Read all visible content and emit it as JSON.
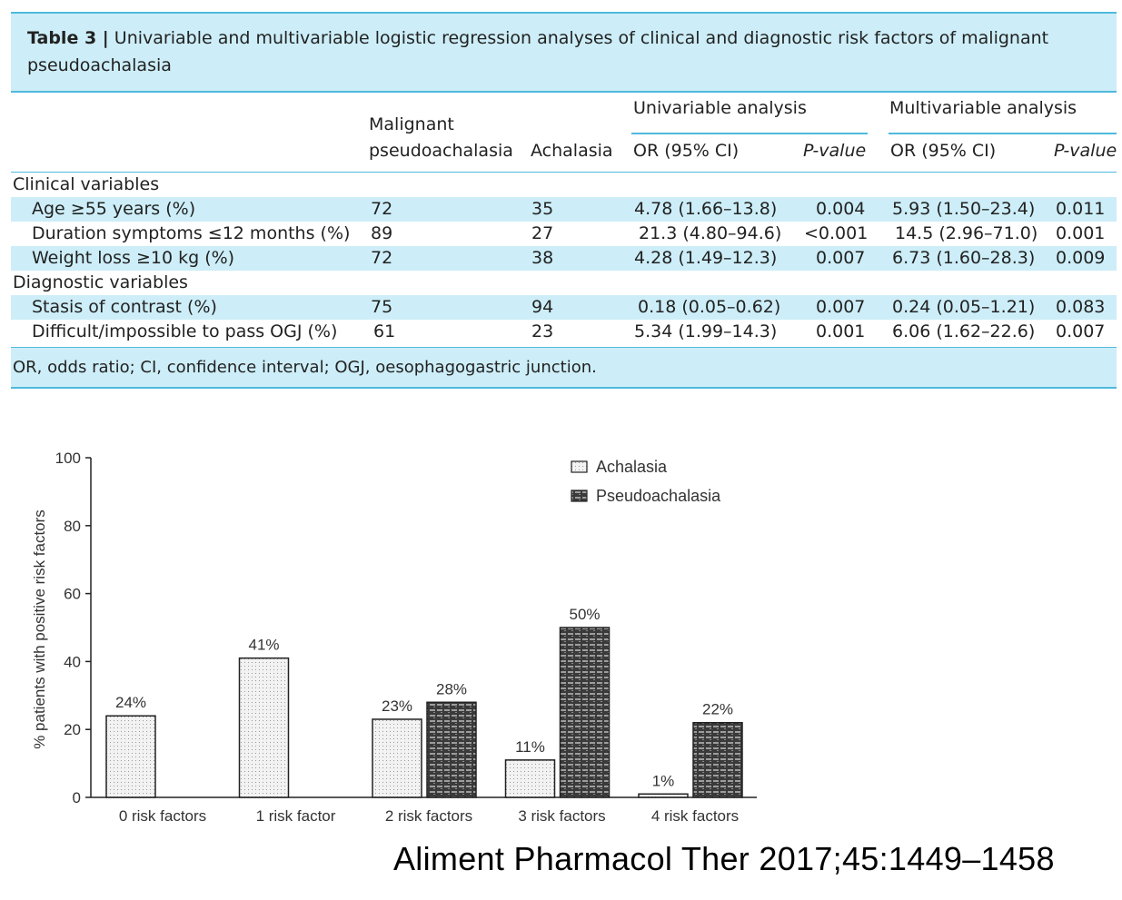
{
  "table": {
    "caption_label": "Table 3 |",
    "caption_text": "Univariable and multivariable logistic regression analyses of clinical and diagnostic risk factors of malignant pseudoachalasia",
    "headers": {
      "malignant_line1": "Malignant",
      "malignant_line2": "pseudoachalasia",
      "achalasia": "Achalasia",
      "univariable": "Univariable analysis",
      "multivariable": "Multivariable analysis",
      "or_ci_1": "OR (95% CI)",
      "p_1": "P-value",
      "or_ci_2": "OR (95% CI)",
      "p_2": "P-value"
    },
    "sections": [
      {
        "title": "Clinical variables",
        "rows": [
          {
            "label": "Age ≥55 years (%)",
            "malignant": "72",
            "achalasia": "35",
            "uni_or": "4.78 (1.66–13.8)",
            "uni_p": "0.004",
            "multi_or": "5.93 (1.50–23.4)",
            "multi_p": "0.011"
          },
          {
            "label": "Duration symptoms ≤12 months (%)",
            "malignant": "89",
            "achalasia": "27",
            "uni_or": "21.3 (4.80–94.6)",
            "uni_p": "<0.001",
            "multi_or": "14.5 (2.96–71.0)",
            "multi_p": "0.001"
          },
          {
            "label": "Weight loss ≥10 kg (%)",
            "malignant": "72",
            "achalasia": "38",
            "uni_or": "4.28 (1.49–12.3)",
            "uni_p": "0.007",
            "multi_or": "6.73 (1.60–28.3)",
            "multi_p": "0.009"
          }
        ]
      },
      {
        "title": "Diagnostic variables",
        "rows": [
          {
            "label": "Stasis of contrast (%)",
            "malignant": "75",
            "achalasia": "94",
            "uni_or": "0.18 (0.05–0.62)",
            "uni_p": "0.007",
            "multi_or": "0.24 (0.05–1.21)",
            "multi_p": "0.083"
          },
          {
            "label": "Difficult/impossible to pass OGJ (%)",
            "malignant": "61",
            "achalasia": "23",
            "uni_or": "5.34 (1.99–14.3)",
            "uni_p": "0.001",
            "multi_or": "6.06 (1.62–22.6)",
            "multi_p": "0.007"
          }
        ]
      }
    ],
    "footnote": "OR, odds ratio; CI, confidence interval; OGJ, oesophagogastric junction."
  },
  "chart_data": {
    "type": "bar",
    "categories": [
      "0 risk factors",
      "1 risk factor",
      "2 risk factors",
      "3 risk factors",
      "4 risk factors"
    ],
    "series": [
      {
        "name": "Achalasia",
        "values": [
          24,
          41,
          23,
          11,
          1
        ],
        "labels": [
          "24%",
          "41%",
          "23%",
          "11%",
          "1%"
        ],
        "color": "#ececec"
      },
      {
        "name": "Pseudoachalasia",
        "values": [
          null,
          null,
          28,
          50,
          22
        ],
        "labels": [
          "",
          "",
          "28%",
          "50%",
          "22%"
        ],
        "color": "#5a5a5a"
      }
    ],
    "ylabel": "% patients with positive risk factors",
    "ylim": [
      0,
      100
    ],
    "yticks": [
      "0",
      "20",
      "40",
      "60",
      "80",
      "100"
    ],
    "legend_position": "top-right",
    "grid": false
  },
  "citation": "Aliment Pharmacol Ther 2017;45:1449–1458"
}
